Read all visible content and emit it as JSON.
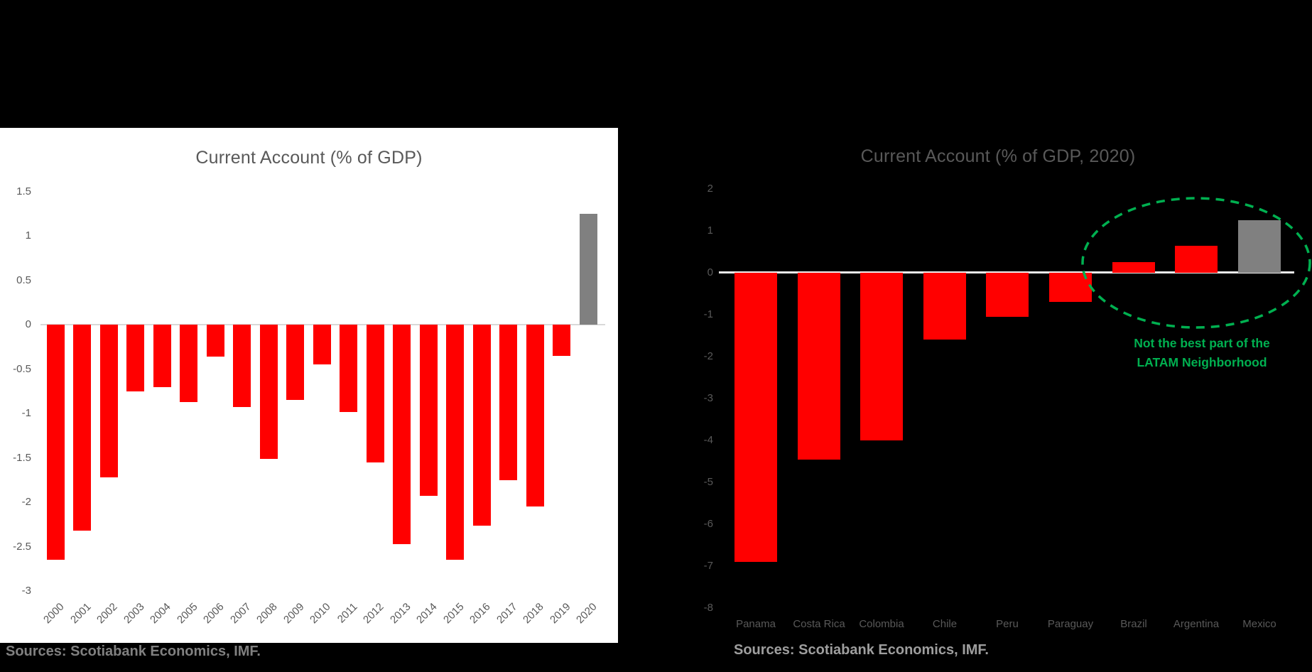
{
  "page": {
    "background": "#000000"
  },
  "colors": {
    "bar_default": "#ff0000",
    "bar_highlight": "#808080",
    "title_gray": "#595959",
    "tick_gray": "#595959",
    "left_axis_line": "#d9d9d9",
    "right_axis_line": "#ededed",
    "annotation_green": "#00b050",
    "left_source_gray": "#808080",
    "right_source_gray": "#9e9e9e"
  },
  "chart_data": [
    {
      "id": "left",
      "type": "bar",
      "title": "Current Account (% of GDP)",
      "categories": [
        "2000",
        "2001",
        "2002",
        "2003",
        "2004",
        "2005",
        "2006",
        "2007",
        "2008",
        "2009",
        "2010",
        "2011",
        "2012",
        "2013",
        "2014",
        "2015",
        "2016",
        "2017",
        "2018",
        "2019",
        "2020"
      ],
      "values": [
        -2.65,
        -2.32,
        -1.72,
        -0.75,
        -0.7,
        -0.87,
        -0.36,
        -0.93,
        -1.51,
        -0.85,
        -0.45,
        -0.98,
        -1.55,
        -2.47,
        -1.93,
        -2.65,
        -2.26,
        -1.75,
        -2.05,
        -0.35,
        1.25
      ],
      "highlight_category": "2020",
      "ylim": [
        -3,
        1.5
      ],
      "ytick_step": 0.5,
      "yticks": [
        "1.5",
        "1",
        "0.5",
        "0",
        "-0.5",
        "-1",
        "-1.5",
        "-2",
        "-2.5",
        "-3"
      ],
      "grid": "none",
      "legend": "none",
      "xlabel": "",
      "ylabel": "",
      "source": "Sources: Scotiabank Economics, IMF."
    },
    {
      "id": "right",
      "type": "bar",
      "title": "Current Account (% of GDP, 2020)",
      "categories": [
        "Panama",
        "Costa Rica",
        "Colombia",
        "Chile",
        "Peru",
        "Paraguay",
        "Brazil",
        "Argentina",
        "Mexico"
      ],
      "values": [
        -6.9,
        -4.45,
        -4.0,
        -1.6,
        -1.05,
        -0.7,
        0.25,
        0.65,
        1.25
      ],
      "highlight_category": "Mexico",
      "ylim": [
        -8,
        2
      ],
      "ytick_step": 1,
      "yticks": [
        "2",
        "1",
        "0",
        "-1",
        "-2",
        "-3",
        "-4",
        "-5",
        "-6",
        "-7",
        "-8"
      ],
      "grid": "none",
      "legend": "none",
      "xlabel": "",
      "ylabel": "",
      "annotation_lines": [
        "Not the best part of the",
        "LATAM Neighborhood"
      ],
      "source": "Sources: Scotiabank Economics, IMF."
    }
  ]
}
